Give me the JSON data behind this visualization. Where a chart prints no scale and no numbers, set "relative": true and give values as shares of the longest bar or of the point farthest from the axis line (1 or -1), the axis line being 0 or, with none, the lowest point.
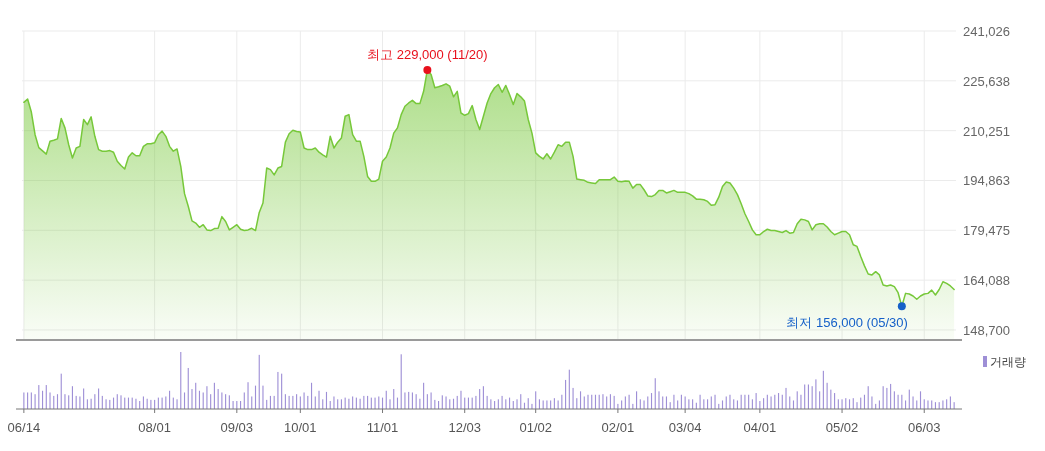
{
  "chart_data": [
    {
      "type": "area",
      "tick_labels": "y",
      "grid": true,
      "categories": [
        null,
        null,
        null,
        null,
        null,
        null,
        null,
        null,
        null,
        null,
        null,
        null,
        null,
        null,
        null,
        null,
        null,
        null,
        null,
        null,
        null,
        null,
        null,
        null,
        null,
        null,
        null,
        null,
        null,
        null,
        null,
        null,
        null,
        null,
        null,
        null,
        null,
        null,
        null,
        null,
        null,
        null,
        null,
        null,
        null,
        null,
        null,
        null,
        null,
        null,
        null,
        null,
        null,
        null,
        null,
        null,
        null,
        null,
        null,
        null,
        null,
        null,
        null,
        null,
        null,
        null,
        null,
        null,
        null,
        null,
        null,
        null,
        null,
        null,
        null,
        null,
        null,
        null,
        null,
        null,
        null,
        null,
        null,
        null,
        null,
        null,
        null,
        null,
        null,
        null,
        null,
        null,
        null,
        null,
        null,
        null,
        null,
        null,
        null,
        null,
        null,
        null,
        null,
        null,
        null,
        null,
        null,
        null,
        null,
        null,
        null,
        null,
        null,
        null,
        null,
        null,
        null,
        null,
        null,
        null,
        null,
        null,
        null,
        null,
        null,
        null,
        null,
        null,
        null,
        null,
        null,
        null,
        null,
        null,
        null,
        null,
        null,
        null,
        null,
        null,
        null,
        null,
        null,
        null,
        null,
        null,
        null,
        null,
        null,
        null,
        null,
        null,
        null,
        null,
        null,
        null,
        null,
        null,
        null,
        null,
        null,
        null,
        null,
        null,
        null,
        null,
        null,
        null,
        null,
        null,
        null,
        null,
        null,
        null,
        null,
        null,
        null,
        null,
        null,
        null,
        null,
        null,
        null,
        null,
        null,
        null,
        null,
        null,
        null,
        null,
        null,
        null,
        null,
        null,
        null,
        null,
        null,
        null,
        null,
        null,
        null,
        null,
        null,
        null,
        null,
        null,
        null,
        null,
        null,
        null,
        null,
        null,
        null,
        null,
        null,
        null,
        null,
        null,
        null,
        null,
        null,
        null,
        null,
        null,
        null,
        null,
        null,
        null,
        null,
        null,
        null,
        null,
        null,
        null,
        null,
        null,
        null,
        null,
        null,
        null,
        null,
        null,
        null,
        null,
        null,
        null,
        null,
        null,
        null,
        null
      ],
      "series": [
        {
          "color": "#77c83a",
          "values": [
            219000,
            220000,
            216000,
            209000,
            205000,
            204000,
            203000,
            207000,
            207300,
            207700,
            214000,
            211100,
            205900,
            201800,
            204900,
            205400,
            213700,
            212100,
            214500,
            208500,
            204400,
            203900,
            203900,
            204100,
            203600,
            200800,
            199500,
            198400,
            202100,
            203400,
            202500,
            202500,
            205400,
            206200,
            206200,
            206500,
            209000,
            210100,
            208500,
            205400,
            203900,
            204600,
            199200,
            190800,
            186900,
            182400,
            181700,
            180400,
            181200,
            179600,
            179400,
            180000,
            180100,
            183700,
            182200,
            179600,
            180400,
            181200,
            179800,
            179400,
            179600,
            180100,
            179400,
            185000,
            187900,
            198700,
            198200,
            196600,
            198700,
            199200,
            206700,
            209300,
            210400,
            210000,
            209800,
            204900,
            204400,
            204400,
            204900,
            203600,
            202800,
            202100,
            208500,
            204900,
            206700,
            208000,
            214700,
            215200,
            209000,
            207000,
            207000,
            202300,
            196100,
            194600,
            194600,
            195300,
            200800,
            202100,
            204900,
            209500,
            211100,
            215200,
            217800,
            218800,
            219600,
            218600,
            218600,
            222400,
            229000,
            227600,
            223500,
            223800,
            224200,
            224700,
            224000,
            220700,
            222400,
            215700,
            215000,
            215500,
            218000,
            213700,
            210600,
            214700,
            218800,
            221700,
            223500,
            224500,
            222100,
            224200,
            221400,
            218300,
            221700,
            220700,
            219400,
            213700,
            209500,
            203400,
            202300,
            201500,
            203100,
            201500,
            203600,
            205900,
            205400,
            206700,
            206700,
            202300,
            195300,
            195100,
            194900,
            194300,
            194100,
            193900,
            195100,
            195100,
            195100,
            195100,
            195900,
            194600,
            194500,
            194700,
            194600,
            192500,
            193600,
            193600,
            192000,
            190100,
            189900,
            190500,
            191800,
            191800,
            191000,
            191400,
            191800,
            191200,
            191200,
            191200,
            190800,
            190100,
            189100,
            189100,
            188900,
            188400,
            187200,
            187400,
            189700,
            193000,
            194400,
            194100,
            192500,
            190500,
            187700,
            184600,
            182200,
            179600,
            178100,
            178100,
            179100,
            179800,
            179400,
            179400,
            179100,
            178800,
            179400,
            178600,
            178800,
            181500,
            182900,
            182700,
            182200,
            179600,
            181200,
            181500,
            181500,
            180500,
            179100,
            178100,
            178600,
            179100,
            179100,
            178100,
            175000,
            174500,
            171400,
            168500,
            166000,
            165700,
            166700,
            165700,
            162600,
            162300,
            162600,
            162100,
            160200,
            156000,
            160000,
            159800,
            159200,
            158200,
            159200,
            159800,
            160000,
            161000,
            159500,
            161200,
            163600,
            163100,
            162300,
            161200
          ]
        }
      ],
      "ylim": [
        145600,
        241026
      ],
      "yticks": [
        {
          "value": 148700,
          "label": "148,700"
        },
        {
          "value": 164088,
          "label": "164,088"
        },
        {
          "value": 179475,
          "label": "179,475"
        },
        {
          "value": 194863,
          "label": "194,863"
        },
        {
          "value": 210251,
          "label": "210,251"
        },
        {
          "value": 225638,
          "label": "225,638"
        },
        {
          "value": 241026,
          "label": "241,026"
        }
      ],
      "annotations": [
        "최고 229,000 (11/20)",
        "최저 156,000 (05/30)"
      ]
    },
    {
      "type": "bar",
      "relative": true,
      "legend": "top right",
      "categories": [
        "06/14",
        null,
        null,
        null,
        null,
        null,
        null,
        null,
        null,
        null,
        null,
        null,
        null,
        null,
        null,
        null,
        null,
        null,
        null,
        null,
        null,
        null,
        null,
        null,
        null,
        null,
        null,
        null,
        null,
        null,
        null,
        null,
        null,
        null,
        null,
        "08/01",
        null,
        null,
        null,
        null,
        null,
        null,
        null,
        null,
        null,
        null,
        null,
        null,
        null,
        null,
        null,
        null,
        null,
        null,
        null,
        null,
        null,
        "09/03",
        null,
        null,
        null,
        null,
        null,
        null,
        null,
        null,
        null,
        null,
        null,
        null,
        null,
        null,
        null,
        null,
        "10/01",
        null,
        null,
        null,
        null,
        null,
        null,
        null,
        null,
        null,
        null,
        null,
        null,
        null,
        null,
        null,
        null,
        null,
        null,
        null,
        null,
        null,
        "11/01",
        null,
        null,
        null,
        null,
        null,
        null,
        null,
        null,
        null,
        null,
        null,
        null,
        null,
        null,
        null,
        null,
        null,
        null,
        null,
        null,
        null,
        "12/03",
        null,
        null,
        null,
        null,
        null,
        null,
        null,
        null,
        null,
        null,
        null,
        null,
        null,
        null,
        null,
        null,
        null,
        null,
        "01/02",
        null,
        null,
        null,
        null,
        null,
        null,
        null,
        null,
        null,
        null,
        null,
        null,
        null,
        null,
        null,
        null,
        null,
        null,
        null,
        null,
        null,
        "02/01",
        null,
        null,
        null,
        null,
        null,
        null,
        null,
        null,
        null,
        null,
        null,
        null,
        null,
        null,
        null,
        null,
        null,
        "03/04",
        null,
        null,
        null,
        null,
        null,
        null,
        null,
        null,
        null,
        null,
        null,
        null,
        null,
        null,
        null,
        null,
        null,
        null,
        null,
        "04/01",
        null,
        null,
        null,
        null,
        null,
        null,
        null,
        null,
        null,
        null,
        null,
        null,
        null,
        null,
        null,
        null,
        null,
        null,
        null,
        null,
        null,
        "05/02",
        null,
        null,
        null,
        null,
        null,
        null,
        null,
        null,
        null,
        null,
        null,
        null,
        null,
        null,
        null,
        null,
        null,
        null,
        null,
        null,
        null,
        "06/03",
        null,
        null,
        null,
        null,
        null,
        null,
        null,
        null
      ],
      "series": [
        {
          "name": "거래량",
          "color": "#9e8fd6",
          "values": [
            0.29,
            0.29,
            0.29,
            0.26,
            0.42,
            0.32,
            0.42,
            0.29,
            0.23,
            0.26,
            0.62,
            0.26,
            0.24,
            0.4,
            0.23,
            0.22,
            0.36,
            0.17,
            0.18,
            0.26,
            0.36,
            0.23,
            0.17,
            0.16,
            0.2,
            0.26,
            0.24,
            0.2,
            0.2,
            0.2,
            0.18,
            0.14,
            0.22,
            0.18,
            0.16,
            0.16,
            0.2,
            0.2,
            0.22,
            0.32,
            0.2,
            0.17,
            1,
            0.29,
            0.72,
            0.35,
            0.46,
            0.32,
            0.29,
            0.4,
            0.26,
            0.46,
            0.35,
            0.29,
            0.26,
            0.24,
            0.14,
            0.14,
            0.14,
            0.29,
            0.47,
            0.22,
            0.41,
            0.95,
            0.41,
            0.16,
            0.23,
            0.23,
            0.65,
            0.62,
            0.26,
            0.23,
            0.23,
            0.26,
            0.22,
            0.29,
            0.23,
            0.46,
            0.22,
            0.32,
            0.17,
            0.3,
            0.14,
            0.22,
            0.17,
            0.17,
            0.2,
            0.18,
            0.22,
            0.2,
            0.18,
            0.23,
            0.23,
            0.2,
            0.2,
            0.22,
            0.2,
            0.32,
            0.17,
            0.35,
            0.2,
            0.96,
            0.29,
            0.3,
            0.29,
            0.26,
            0.18,
            0.46,
            0.26,
            0.29,
            0.16,
            0.14,
            0.24,
            0.22,
            0.17,
            0.18,
            0.23,
            0.32,
            0.2,
            0.2,
            0.2,
            0.23,
            0.35,
            0.4,
            0.23,
            0.17,
            0.14,
            0.17,
            0.23,
            0.17,
            0.2,
            0.14,
            0.17,
            0.26,
            0.11,
            0.19,
            0.09,
            0.31,
            0.17,
            0.15,
            0.15,
            0.15,
            0.19,
            0.15,
            0.25,
            0.51,
            0.69,
            0.37,
            0.19,
            0.31,
            0.22,
            0.25,
            0.25,
            0.25,
            0.25,
            0.26,
            0.22,
            0.26,
            0.23,
            0.09,
            0.15,
            0.22,
            0.25,
            0.09,
            0.31,
            0.17,
            0.15,
            0.22,
            0.28,
            0.54,
            0.31,
            0.22,
            0.22,
            0.12,
            0.25,
            0.15,
            0.25,
            0.22,
            0.17,
            0.17,
            0.11,
            0.25,
            0.17,
            0.17,
            0.22,
            0.25,
            0.09,
            0.15,
            0.22,
            0.25,
            0.17,
            0.15,
            0.25,
            0.25,
            0.25,
            0.17,
            0.28,
            0.14,
            0.19,
            0.25,
            0.22,
            0.25,
            0.28,
            0.25,
            0.37,
            0.22,
            0.15,
            0.31,
            0.25,
            0.43,
            0.43,
            0.4,
            0.52,
            0.31,
            0.67,
            0.46,
            0.34,
            0.28,
            0.17,
            0.17,
            0.19,
            0.17,
            0.19,
            0.12,
            0.2,
            0.25,
            0.4,
            0.22,
            0.09,
            0.15,
            0.4,
            0.37,
            0.44,
            0.31,
            0.25,
            0.25,
            0.15,
            0.34,
            0.22,
            0.15,
            0.31,
            0.17,
            0.15,
            0.15,
            0.12,
            0.12,
            0.15,
            0.17,
            0.22,
            0.12
          ]
        }
      ]
    }
  ]
}
